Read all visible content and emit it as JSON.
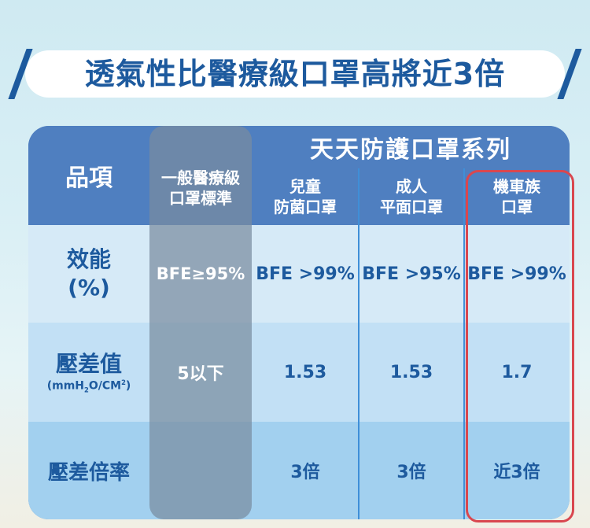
{
  "title": "透氣性比醫療級口罩高將近3倍",
  "table": {
    "item_header": "品項",
    "series_header": "天天防護口罩系列",
    "columns": [
      {
        "line1": "一般醫療級",
        "line2": "口罩標準"
      },
      {
        "line1": "兒童",
        "line2": "防菌口罩"
      },
      {
        "line1": "成人",
        "line2": "平面口罩"
      },
      {
        "line1": "機車族",
        "line2": "口罩"
      }
    ],
    "rows": [
      {
        "label1": "效能",
        "label2": "(%)",
        "values": [
          "BFE≥95%",
          "BFE >99%",
          "BFE >95%",
          "BFE >99%"
        ]
      },
      {
        "label1": "壓差值",
        "unit_pre": "(mmH",
        "unit_sub": "2",
        "unit_mid": "O/CM",
        "unit_sup": "2",
        "unit_post": ")",
        "values": [
          "5以下",
          "1.53",
          "1.53",
          "1.7"
        ]
      },
      {
        "label1": "壓差倍率",
        "values": [
          "",
          "3倍",
          "3倍",
          "近3倍"
        ]
      }
    ]
  },
  "colors": {
    "title": "#1d5a9e",
    "header": "#4f7fc0",
    "highlight": "#d9474f"
  }
}
